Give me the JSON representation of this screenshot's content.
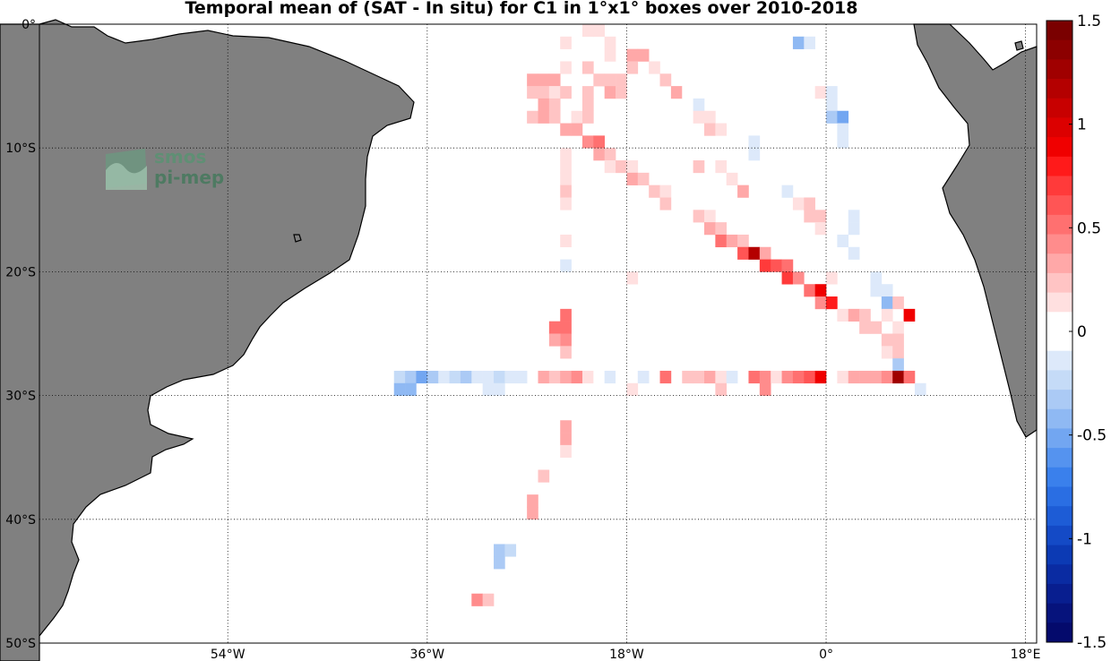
{
  "title": "Temporal mean of (SAT - In situ) for C1 in 1°x1° boxes over 2010-2018",
  "logo": {
    "line1": "smos",
    "line2": "pi-mep"
  },
  "map": {
    "lon_range": [
      -71,
      19
    ],
    "lat_range": [
      -50,
      0
    ],
    "lat_ticks": [
      {
        "value": 0,
        "label": "0°"
      },
      {
        "value": -10,
        "label": "10°S"
      },
      {
        "value": -20,
        "label": "20°S"
      },
      {
        "value": -30,
        "label": "30°S"
      },
      {
        "value": -40,
        "label": "40°S"
      },
      {
        "value": -50,
        "label": "50°S"
      }
    ],
    "lon_ticks": [
      {
        "value": -54,
        "label": "54°W"
      },
      {
        "value": -36,
        "label": "36°W"
      },
      {
        "value": -18,
        "label": "18°W"
      },
      {
        "value": 0,
        "label": "0°"
      },
      {
        "value": 18,
        "label": "18°E"
      }
    ],
    "land_color": "#808080"
  },
  "colorbar": {
    "range": [
      -1.5,
      1.5
    ],
    "labels": [
      "1.5",
      "1",
      "0.5",
      "0",
      "-0.5",
      "-1",
      "-1.5"
    ],
    "label_values": [
      1.5,
      1,
      0.5,
      0,
      -0.5,
      -1,
      -1.5
    ],
    "colors_top_to_bottom": [
      "#7a0000",
      "#8c0000",
      "#a00000",
      "#b40000",
      "#c80000",
      "#dc0000",
      "#f00000",
      "#ff1a1a",
      "#ff3a3a",
      "#ff5555",
      "#ff7070",
      "#ff8c8c",
      "#ffa8a8",
      "#ffc4c4",
      "#ffe0e0",
      "#ffffff",
      "#ffffff",
      "#dde9fa",
      "#c5dbf7",
      "#abcaf5",
      "#8fb9f3",
      "#72a6f1",
      "#5593ef",
      "#3a80ec",
      "#2a6ee3",
      "#1d5cd6",
      "#144ac6",
      "#0c3ab4",
      "#0a2ba2",
      "#081e8f",
      "#06137c",
      "#040a6c"
    ]
  },
  "chart_data": {
    "type": "heatmap",
    "title": "Temporal mean of (SAT - In situ) for C1 in 1°x1° boxes over 2010-2018",
    "variable": "SAT - In situ (temporal mean, C1, 1°x1° boxes, 2010-2018)",
    "colorscale_range": [
      -1.5,
      1.5
    ],
    "cells": [
      {
        "lon": -22,
        "lat": -1,
        "v": 0.1
      },
      {
        "lon": -21,
        "lat": -1,
        "v": 0.15
      },
      {
        "lon": -20,
        "lat": -2,
        "v": 0.15
      },
      {
        "lon": -24,
        "lat": -2,
        "v": 0.1
      },
      {
        "lon": -20,
        "lat": -3,
        "v": 0.15
      },
      {
        "lon": -18,
        "lat": -3,
        "v": 0.3
      },
      {
        "lon": -17,
        "lat": -3,
        "v": 0.3
      },
      {
        "lon": -18,
        "lat": -4,
        "v": 0.25
      },
      {
        "lon": -16,
        "lat": -4,
        "v": 0.15
      },
      {
        "lon": -22,
        "lat": -4,
        "v": 0.2
      },
      {
        "lon": -24,
        "lat": -4,
        "v": 0.1
      },
      {
        "lon": -21,
        "lat": -5,
        "v": 0.2
      },
      {
        "lon": -20,
        "lat": -5,
        "v": 0.25
      },
      {
        "lon": -19,
        "lat": -5,
        "v": 0.2
      },
      {
        "lon": -15,
        "lat": -5,
        "v": 0.2
      },
      {
        "lon": -27,
        "lat": -5,
        "v": 0.3
      },
      {
        "lon": -26,
        "lat": -5,
        "v": 0.3
      },
      {
        "lon": -25,
        "lat": -5,
        "v": 0.3
      },
      {
        "lon": -26,
        "lat": -6,
        "v": 0.2
      },
      {
        "lon": -27,
        "lat": -6,
        "v": 0.25
      },
      {
        "lon": -25,
        "lat": -6,
        "v": 0.1
      },
      {
        "lon": -20,
        "lat": -6,
        "v": 0.3
      },
      {
        "lon": -19,
        "lat": -6,
        "v": 0.25
      },
      {
        "lon": -14,
        "lat": -6,
        "v": 0.35
      },
      {
        "lon": -13,
        "lat": -6,
        "v": 0.05
      },
      {
        "lon": -24,
        "lat": -6,
        "v": 0.25
      },
      {
        "lon": -22,
        "lat": -6,
        "v": 0.2
      },
      {
        "lon": -26,
        "lat": -7,
        "v": 0.3
      },
      {
        "lon": -25,
        "lat": -7,
        "v": 0.2
      },
      {
        "lon": -22,
        "lat": -7,
        "v": 0.2
      },
      {
        "lon": -12,
        "lat": -7,
        "v": -0.1
      },
      {
        "lon": -27,
        "lat": -8,
        "v": 0.25
      },
      {
        "lon": -26,
        "lat": -8,
        "v": 0.35
      },
      {
        "lon": -25,
        "lat": -8,
        "v": 0.2
      },
      {
        "lon": -23,
        "lat": -8,
        "v": 0.1
      },
      {
        "lon": -22,
        "lat": -8,
        "v": 0.2
      },
      {
        "lon": -12,
        "lat": -8,
        "v": 0.15
      },
      {
        "lon": -11,
        "lat": -8,
        "v": 0.15
      },
      {
        "lon": -24,
        "lat": -9,
        "v": 0.35
      },
      {
        "lon": -23,
        "lat": -9,
        "v": 0.3
      },
      {
        "lon": -11,
        "lat": -9,
        "v": 0.2
      },
      {
        "lon": -10,
        "lat": -9,
        "v": 0.1
      },
      {
        "lon": -22,
        "lat": -10,
        "v": 0.4
      },
      {
        "lon": -21,
        "lat": -10,
        "v": 0.5
      },
      {
        "lon": -7,
        "lat": -10,
        "v": -0.1
      },
      {
        "lon": -24,
        "lat": -11,
        "v": 0.1
      },
      {
        "lon": -21,
        "lat": -11,
        "v": 0.3
      },
      {
        "lon": -20,
        "lat": -11,
        "v": 0.25
      },
      {
        "lon": -7,
        "lat": -11,
        "v": -0.1
      },
      {
        "lon": -20,
        "lat": -12,
        "v": 0.15
      },
      {
        "lon": -19,
        "lat": -12,
        "v": 0.2
      },
      {
        "lon": -18,
        "lat": -12,
        "v": 0.1
      },
      {
        "lon": -12,
        "lat": -12,
        "v": 0.25
      },
      {
        "lon": -10,
        "lat": -12,
        "v": 0.1
      },
      {
        "lon": -24,
        "lat": -12,
        "v": 0.1
      },
      {
        "lon": -18,
        "lat": -13,
        "v": 0.35
      },
      {
        "lon": -17,
        "lat": -13,
        "v": 0.2
      },
      {
        "lon": -9,
        "lat": -13,
        "v": 0.1
      },
      {
        "lon": -24,
        "lat": -13,
        "v": 0.1
      },
      {
        "lon": -16,
        "lat": -14,
        "v": 0.25
      },
      {
        "lon": -15,
        "lat": -14,
        "v": 0.15
      },
      {
        "lon": -8,
        "lat": -14,
        "v": 0.3
      },
      {
        "lon": -4,
        "lat": -14,
        "v": -0.1
      },
      {
        "lon": -24,
        "lat": -14,
        "v": 0.25
      },
      {
        "lon": -15,
        "lat": -15,
        "v": 0.25
      },
      {
        "lon": -3,
        "lat": -15,
        "v": 0.15
      },
      {
        "lon": -2,
        "lat": -15,
        "v": 0.25
      },
      {
        "lon": -24,
        "lat": -15,
        "v": 0.15
      },
      {
        "lon": -12,
        "lat": -16,
        "v": 0.2
      },
      {
        "lon": -11,
        "lat": -16,
        "v": 0.1
      },
      {
        "lon": -2,
        "lat": -16,
        "v": 0.25
      },
      {
        "lon": -1,
        "lat": -16,
        "v": 0.2
      },
      {
        "lon": 2,
        "lat": -16,
        "v": -0.1
      },
      {
        "lon": -11,
        "lat": -17,
        "v": 0.35
      },
      {
        "lon": -10,
        "lat": -17,
        "v": 0.2
      },
      {
        "lon": -1,
        "lat": -17,
        "v": 0.1
      },
      {
        "lon": 2,
        "lat": -17,
        "v": -0.1
      },
      {
        "lon": -10,
        "lat": -18,
        "v": 0.5
      },
      {
        "lon": -9,
        "lat": -18,
        "v": 0.35
      },
      {
        "lon": -8,
        "lat": -18,
        "v": 0.2
      },
      {
        "lon": 1,
        "lat": -18,
        "v": -0.1
      },
      {
        "lon": -24,
        "lat": -18,
        "v": 0.15
      },
      {
        "lon": -8,
        "lat": -19,
        "v": 0.6
      },
      {
        "lon": -7,
        "lat": -19,
        "v": 1.2
      },
      {
        "lon": -6,
        "lat": -19,
        "v": 0.35
      },
      {
        "lon": 2,
        "lat": -19,
        "v": -0.1
      },
      {
        "lon": -6,
        "lat": -20,
        "v": 0.7
      },
      {
        "lon": -5,
        "lat": -20,
        "v": 0.6
      },
      {
        "lon": -4,
        "lat": -20,
        "v": 0.5
      },
      {
        "lon": -24,
        "lat": -20,
        "v": -0.1
      },
      {
        "lon": -4,
        "lat": -21,
        "v": 0.7
      },
      {
        "lon": -3,
        "lat": -21,
        "v": 0.4
      },
      {
        "lon": 0,
        "lat": -21,
        "v": 0.15
      },
      {
        "lon": 4,
        "lat": -21,
        "v": -0.1
      },
      {
        "lon": -2,
        "lat": -22,
        "v": 0.5
      },
      {
        "lon": -1,
        "lat": -22,
        "v": 0.9
      },
      {
        "lon": 4,
        "lat": -22,
        "v": -0.1
      },
      {
        "lon": 5,
        "lat": -22,
        "v": -0.15
      },
      {
        "lon": -1,
        "lat": -23,
        "v": 0.4
      },
      {
        "lon": 0,
        "lat": -23,
        "v": 0.8
      },
      {
        "lon": 5,
        "lat": -23,
        "v": -0.4
      },
      {
        "lon": 6,
        "lat": -23,
        "v": 0.2
      },
      {
        "lon": 1,
        "lat": -24,
        "v": 0.15
      },
      {
        "lon": 2,
        "lat": -24,
        "v": 0.3
      },
      {
        "lon": 3,
        "lat": -24,
        "v": 0.25
      },
      {
        "lon": 5,
        "lat": -24,
        "v": 0.15
      },
      {
        "lon": 7,
        "lat": -24,
        "v": 0.9
      },
      {
        "lon": -24,
        "lat": -24,
        "v": 0.5
      },
      {
        "lon": 3,
        "lat": -25,
        "v": 0.2
      },
      {
        "lon": 4,
        "lat": -25,
        "v": 0.25
      },
      {
        "lon": 6,
        "lat": -25,
        "v": 0.15
      },
      {
        "lon": -25,
        "lat": -25,
        "v": 0.5
      },
      {
        "lon": -24,
        "lat": -25,
        "v": 0.5
      },
      {
        "lon": -24,
        "lat": -26,
        "v": 0.4
      },
      {
        "lon": -25,
        "lat": -26,
        "v": 0.3
      },
      {
        "lon": 5,
        "lat": -26,
        "v": 0.2
      },
      {
        "lon": 6,
        "lat": -26,
        "v": 0.25
      },
      {
        "lon": -24,
        "lat": -27,
        "v": 0.25
      },
      {
        "lon": 5,
        "lat": -27,
        "v": 0.15
      },
      {
        "lon": 6,
        "lat": -27,
        "v": 0.2
      },
      {
        "lon": 6,
        "lat": -28,
        "v": -0.3
      },
      {
        "lon": -39,
        "lat": -29,
        "v": -0.25
      },
      {
        "lon": -38,
        "lat": -29,
        "v": -0.3
      },
      {
        "lon": -37,
        "lat": -29,
        "v": -0.5
      },
      {
        "lon": -36,
        "lat": -29,
        "v": -0.3
      },
      {
        "lon": -35,
        "lat": -29,
        "v": -0.15
      },
      {
        "lon": -34,
        "lat": -29,
        "v": -0.25
      },
      {
        "lon": -33,
        "lat": -29,
        "v": -0.3
      },
      {
        "lon": -32,
        "lat": -29,
        "v": -0.15
      },
      {
        "lon": -31,
        "lat": -29,
        "v": -0.1
      },
      {
        "lon": -30,
        "lat": -29,
        "v": -0.25
      },
      {
        "lon": -29,
        "lat": -29,
        "v": -0.15
      },
      {
        "lon": -28,
        "lat": -29,
        "v": -0.1
      },
      {
        "lon": -26,
        "lat": -29,
        "v": 0.3
      },
      {
        "lon": -25,
        "lat": -29,
        "v": 0.2
      },
      {
        "lon": -24,
        "lat": -29,
        "v": 0.3
      },
      {
        "lon": -23,
        "lat": -29,
        "v": 0.4
      },
      {
        "lon": -22,
        "lat": -29,
        "v": 0.15
      },
      {
        "lon": -21,
        "lat": -29,
        "v": -0.05
      },
      {
        "lon": -20,
        "lat": -29,
        "v": -0.1
      },
      {
        "lon": -19,
        "lat": -29,
        "v": -0.05
      },
      {
        "lon": -17,
        "lat": -29,
        "v": -0.1
      },
      {
        "lon": -15,
        "lat": -29,
        "v": 0.5
      },
      {
        "lon": -13,
        "lat": -29,
        "v": 0.2
      },
      {
        "lon": -12,
        "lat": -29,
        "v": 0.2
      },
      {
        "lon": -11,
        "lat": -29,
        "v": 0.35
      },
      {
        "lon": -10,
        "lat": -29,
        "v": 0.15
      },
      {
        "lon": -9,
        "lat": -29,
        "v": -0.1
      },
      {
        "lon": -7,
        "lat": -29,
        "v": 0.5
      },
      {
        "lon": -6,
        "lat": -29,
        "v": 0.4
      },
      {
        "lon": -5,
        "lat": -29,
        "v": 0.15
      },
      {
        "lon": -4,
        "lat": -29,
        "v": 0.4
      },
      {
        "lon": -3,
        "lat": -29,
        "v": 0.5
      },
      {
        "lon": -2,
        "lat": -29,
        "v": 0.6
      },
      {
        "lon": -1,
        "lat": -29,
        "v": 0.9
      },
      {
        "lon": 1,
        "lat": -29,
        "v": 0.15
      },
      {
        "lon": 2,
        "lat": -29,
        "v": 0.35
      },
      {
        "lon": 3,
        "lat": -29,
        "v": 0.35
      },
      {
        "lon": 4,
        "lat": -29,
        "v": 0.35
      },
      {
        "lon": 5,
        "lat": -29,
        "v": 0.4
      },
      {
        "lon": 6,
        "lat": -29,
        "v": 1.3
      },
      {
        "lon": 7,
        "lat": -29,
        "v": 0.5
      },
      {
        "lon": -39,
        "lat": -30,
        "v": -0.4
      },
      {
        "lon": -38,
        "lat": -30,
        "v": -0.4
      },
      {
        "lon": -31,
        "lat": -30,
        "v": -0.1
      },
      {
        "lon": -30,
        "lat": -30,
        "v": -0.1
      },
      {
        "lon": -18,
        "lat": -30,
        "v": 0.1
      },
      {
        "lon": -10,
        "lat": -30,
        "v": 0.2
      },
      {
        "lon": -6,
        "lat": -30,
        "v": 0.4
      },
      {
        "lon": 8,
        "lat": -30,
        "v": -0.1
      },
      {
        "lon": -24,
        "lat": -33,
        "v": 0.35
      },
      {
        "lon": -24,
        "lat": -34,
        "v": 0.35
      },
      {
        "lon": -24,
        "lat": -35,
        "v": 0.15
      },
      {
        "lon": -26,
        "lat": -37,
        "v": 0.25
      },
      {
        "lon": -27,
        "lat": -39,
        "v": 0.35
      },
      {
        "lon": -27,
        "lat": -40,
        "v": 0.3
      },
      {
        "lon": -30,
        "lat": -43,
        "v": -0.3
      },
      {
        "lon": -29,
        "lat": -43,
        "v": -0.25
      },
      {
        "lon": -30,
        "lat": -44,
        "v": -0.3
      },
      {
        "lon": -32,
        "lat": -47,
        "v": 0.4
      },
      {
        "lon": -31,
        "lat": -47,
        "v": 0.2
      },
      {
        "lon": -3,
        "lat": -2,
        "v": -0.4
      },
      {
        "lon": -2,
        "lat": -2,
        "v": -0.15
      },
      {
        "lon": -1,
        "lat": -6,
        "v": 0.1
      },
      {
        "lon": 0,
        "lat": -6,
        "v": -0.1
      },
      {
        "lon": 0,
        "lat": -7,
        "v": -0.15
      },
      {
        "lon": 0,
        "lat": -8,
        "v": -0.3
      },
      {
        "lon": 1,
        "lat": -8,
        "v": -0.5
      },
      {
        "lon": 1,
        "lat": -9,
        "v": -0.15
      },
      {
        "lon": 1,
        "lat": -10,
        "v": -0.1
      },
      {
        "lon": -18,
        "lat": -21,
        "v": 0.1
      }
    ]
  }
}
